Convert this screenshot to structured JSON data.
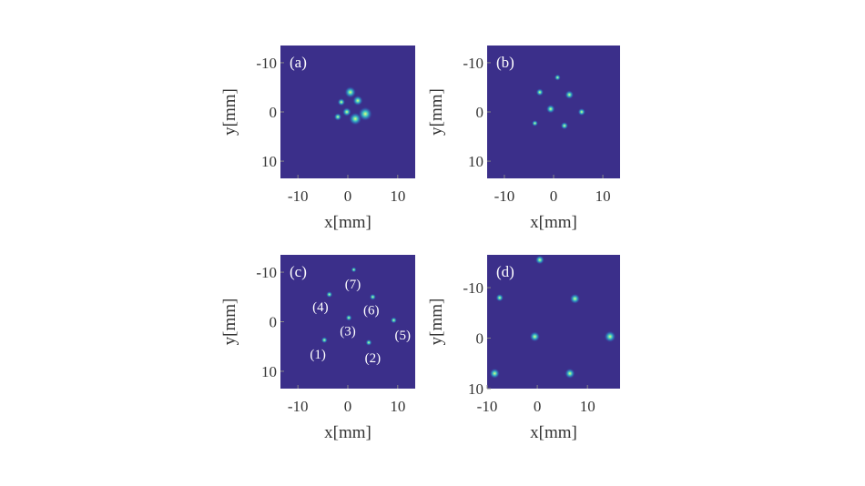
{
  "figure": {
    "background": "#ffffff",
    "image_bg": "#3b2f8a",
    "spot_core": "#e6ff7a",
    "spot_mid": "#3fd0c4",
    "spot_glow": "#2a80c8"
  },
  "chart_data": [
    {
      "type": "scatter",
      "panel_label": "(a)",
      "xlabel": "x[mm]",
      "ylabel": "y[mm]",
      "xlim": [
        -13.5,
        13.5
      ],
      "ylim": [
        -13.5,
        13.5
      ],
      "y_reversed": true,
      "xticks": [
        -10,
        0,
        10
      ],
      "yticks": [
        -10,
        0,
        10
      ],
      "spots": [
        {
          "x": 0.5,
          "y": -4,
          "r": 0.9
        },
        {
          "x": -1.3,
          "y": -2,
          "r": 0.6
        },
        {
          "x": 2.0,
          "y": -2.3,
          "r": 0.8
        },
        {
          "x": -0.2,
          "y": 0,
          "r": 0.7
        },
        {
          "x": 3.5,
          "y": 0.4,
          "r": 1.1
        },
        {
          "x": 1.5,
          "y": 1.4,
          "r": 1.0
        },
        {
          "x": -2.0,
          "y": 1.0,
          "r": 0.6
        }
      ]
    },
    {
      "type": "scatter",
      "panel_label": "(b)",
      "xlabel": "x[mm]",
      "ylabel": "y[mm]",
      "xlim": [
        -13.5,
        13.5
      ],
      "ylim": [
        -13.5,
        13.5
      ],
      "y_reversed": true,
      "xticks": [
        -10,
        0,
        10
      ],
      "yticks": [
        -10,
        0,
        10
      ],
      "spots": [
        {
          "x": 0.8,
          "y": -7,
          "r": 0.5
        },
        {
          "x": -2.8,
          "y": -4,
          "r": 0.6
        },
        {
          "x": 3.2,
          "y": -3.5,
          "r": 0.7
        },
        {
          "x": -0.6,
          "y": -0.6,
          "r": 0.7
        },
        {
          "x": 5.7,
          "y": 0,
          "r": 0.6
        },
        {
          "x": -3.8,
          "y": 2.3,
          "r": 0.5
        },
        {
          "x": 2.2,
          "y": 2.8,
          "r": 0.6
        }
      ]
    },
    {
      "type": "scatter",
      "panel_label": "(c)",
      "xlabel": "x[mm]",
      "ylabel": "y[mm]",
      "xlim": [
        -13.5,
        13.5
      ],
      "ylim": [
        -13.5,
        13.5
      ],
      "y_reversed": true,
      "xticks": [
        -10,
        0,
        10
      ],
      "yticks": [
        -10,
        0,
        10
      ],
      "spots": [
        {
          "x": 1.2,
          "y": -10.5,
          "r": 0.4
        },
        {
          "x": -3.7,
          "y": -5.5,
          "r": 0.5
        },
        {
          "x": 5.0,
          "y": -5,
          "r": 0.5
        },
        {
          "x": 0.2,
          "y": -0.8,
          "r": 0.5
        },
        {
          "x": 9.2,
          "y": -0.3,
          "r": 0.5
        },
        {
          "x": -4.7,
          "y": 3.7,
          "r": 0.5
        },
        {
          "x": 4.2,
          "y": 4.2,
          "r": 0.5
        }
      ],
      "annotations": [
        {
          "text": "(7)",
          "x": 1.0,
          "y": -7.6
        },
        {
          "text": "(4)",
          "x": -5.5,
          "y": -3.0
        },
        {
          "text": "(6)",
          "x": 4.7,
          "y": -2.4
        },
        {
          "text": "(3)",
          "x": 0.0,
          "y": 1.8
        },
        {
          "text": "(5)",
          "x": 11.0,
          "y": 2.7
        },
        {
          "text": "(1)",
          "x": -6.0,
          "y": 6.5
        },
        {
          "text": "(2)",
          "x": 5.0,
          "y": 7.3
        }
      ]
    },
    {
      "type": "scatter",
      "panel_label": "(d)",
      "xlabel": "x[mm]",
      "ylabel": "y[mm]",
      "xlim": [
        -10,
        16.5
      ],
      "ylim": [
        -16.5,
        10
      ],
      "y_reversed": true,
      "xticks": [
        -10,
        0,
        10
      ],
      "yticks": [
        -10,
        0,
        10
      ],
      "spots": [
        {
          "x": 0.5,
          "y": -15.5,
          "r": 0.7
        },
        {
          "x": -7.5,
          "y": -8,
          "r": 0.6
        },
        {
          "x": 7.5,
          "y": -7.8,
          "r": 0.8
        },
        {
          "x": -0.5,
          "y": -0.3,
          "r": 0.8
        },
        {
          "x": 14.5,
          "y": -0.3,
          "r": 0.9
        },
        {
          "x": -8.5,
          "y": 7,
          "r": 0.8
        },
        {
          "x": 6.5,
          "y": 7,
          "r": 0.8
        }
      ]
    }
  ]
}
